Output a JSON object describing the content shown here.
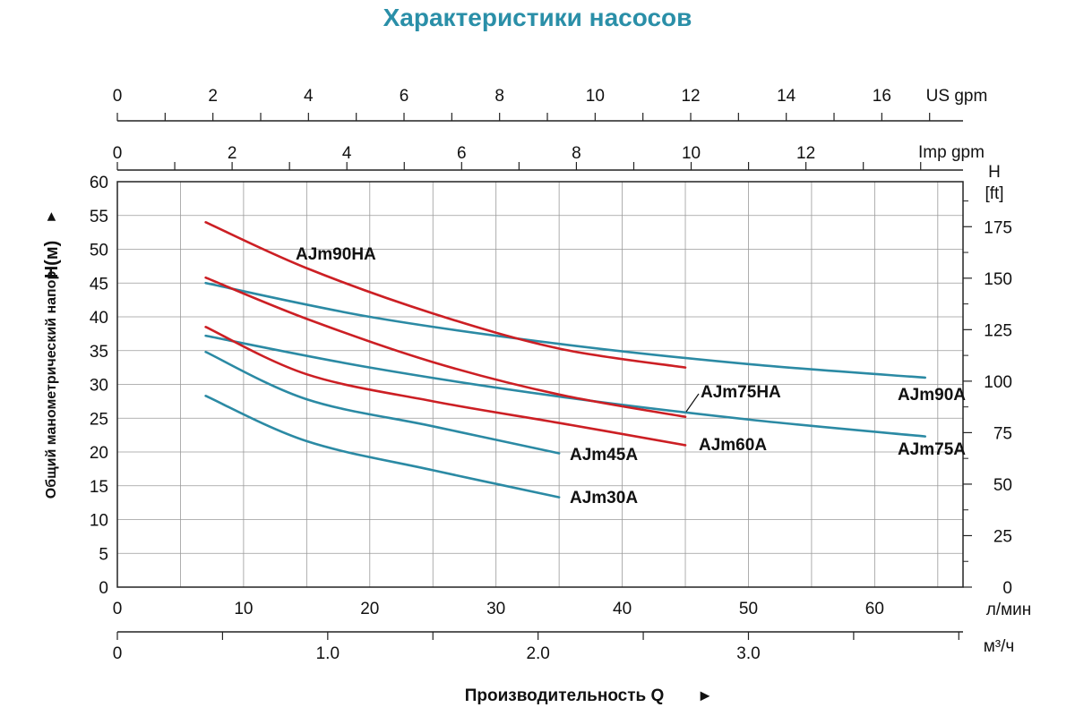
{
  "colors": {
    "title": "#2a8fa8",
    "red_series": "#cc1f24",
    "blue_series": "#2b8aa4",
    "grid": "#9a9a9a",
    "axis": "#222222"
  },
  "chart_data": {
    "type": "line",
    "title": "Характеристики насосов",
    "xlabel": "Производительность Q",
    "x_arrow": "►",
    "ylabel": "Общий манометрический напор",
    "ylabel_unit": "H(м)",
    "y_arrow": "►",
    "x_unit": "л/мин",
    "xlim": [
      0,
      67
    ],
    "ylim": [
      0,
      60
    ],
    "x_ticks": [
      0,
      10,
      20,
      30,
      40,
      50,
      60
    ],
    "y_ticks": [
      0,
      5,
      10,
      15,
      20,
      25,
      30,
      35,
      40,
      45,
      50,
      55,
      60
    ],
    "grid": true,
    "right_axis": {
      "label_h": "H",
      "label_unit": "[ft]",
      "ticks": [
        0,
        25,
        50,
        75,
        100,
        125,
        150,
        175
      ]
    },
    "secondary_x_axes": [
      {
        "unit": "м³/ч",
        "ticks": [
          0,
          1.0,
          2.0,
          3.0
        ],
        "tick_labels": [
          "0",
          "1.0",
          "2.0",
          "3.0"
        ]
      },
      {
        "unit": "Imp gpm",
        "ticks": [
          0,
          2,
          4,
          6,
          8,
          10,
          12
        ],
        "tick_labels": [
          "0",
          "2",
          "4",
          "6",
          "8",
          "10",
          "12"
        ]
      },
      {
        "unit": "US gpm",
        "ticks": [
          0,
          2,
          4,
          6,
          8,
          10,
          12,
          14,
          16
        ],
        "tick_labels": [
          "0",
          "2",
          "4",
          "6",
          "8",
          "10",
          "12",
          "14",
          "16"
        ]
      }
    ],
    "series": [
      {
        "name": "AJm90HA",
        "color": "red",
        "x": [
          7,
          15,
          25,
          35,
          45
        ],
        "y": [
          54,
          47.2,
          40.5,
          35.3,
          32.5
        ]
      },
      {
        "name": "AJm75HA",
        "color": "red",
        "x": [
          7,
          15,
          25,
          35,
          45
        ],
        "y": [
          45.8,
          39.7,
          33.3,
          28.5,
          25.2
        ]
      },
      {
        "name": "AJm60A",
        "color": "red",
        "x": [
          7,
          15,
          25,
          35,
          45
        ],
        "y": [
          38.5,
          31.5,
          27.5,
          24.3,
          21
        ]
      },
      {
        "name": "AJm90A",
        "color": "blue",
        "x": [
          7,
          20,
          35,
          50,
          64
        ],
        "y": [
          45,
          40,
          36,
          33,
          31
        ]
      },
      {
        "name": "AJm75A",
        "color": "blue",
        "x": [
          7,
          20,
          35,
          50,
          64
        ],
        "y": [
          37.2,
          32.5,
          28.2,
          24.8,
          22.3
        ]
      },
      {
        "name": "AJm45A",
        "color": "blue",
        "x": [
          7,
          15,
          25,
          35
        ],
        "y": [
          34.8,
          27.8,
          23.8,
          19.8
        ]
      },
      {
        "name": "AJm30A",
        "color": "blue",
        "x": [
          7,
          15,
          25,
          35
        ],
        "y": [
          28.3,
          21.6,
          17.3,
          13.3
        ]
      }
    ]
  }
}
